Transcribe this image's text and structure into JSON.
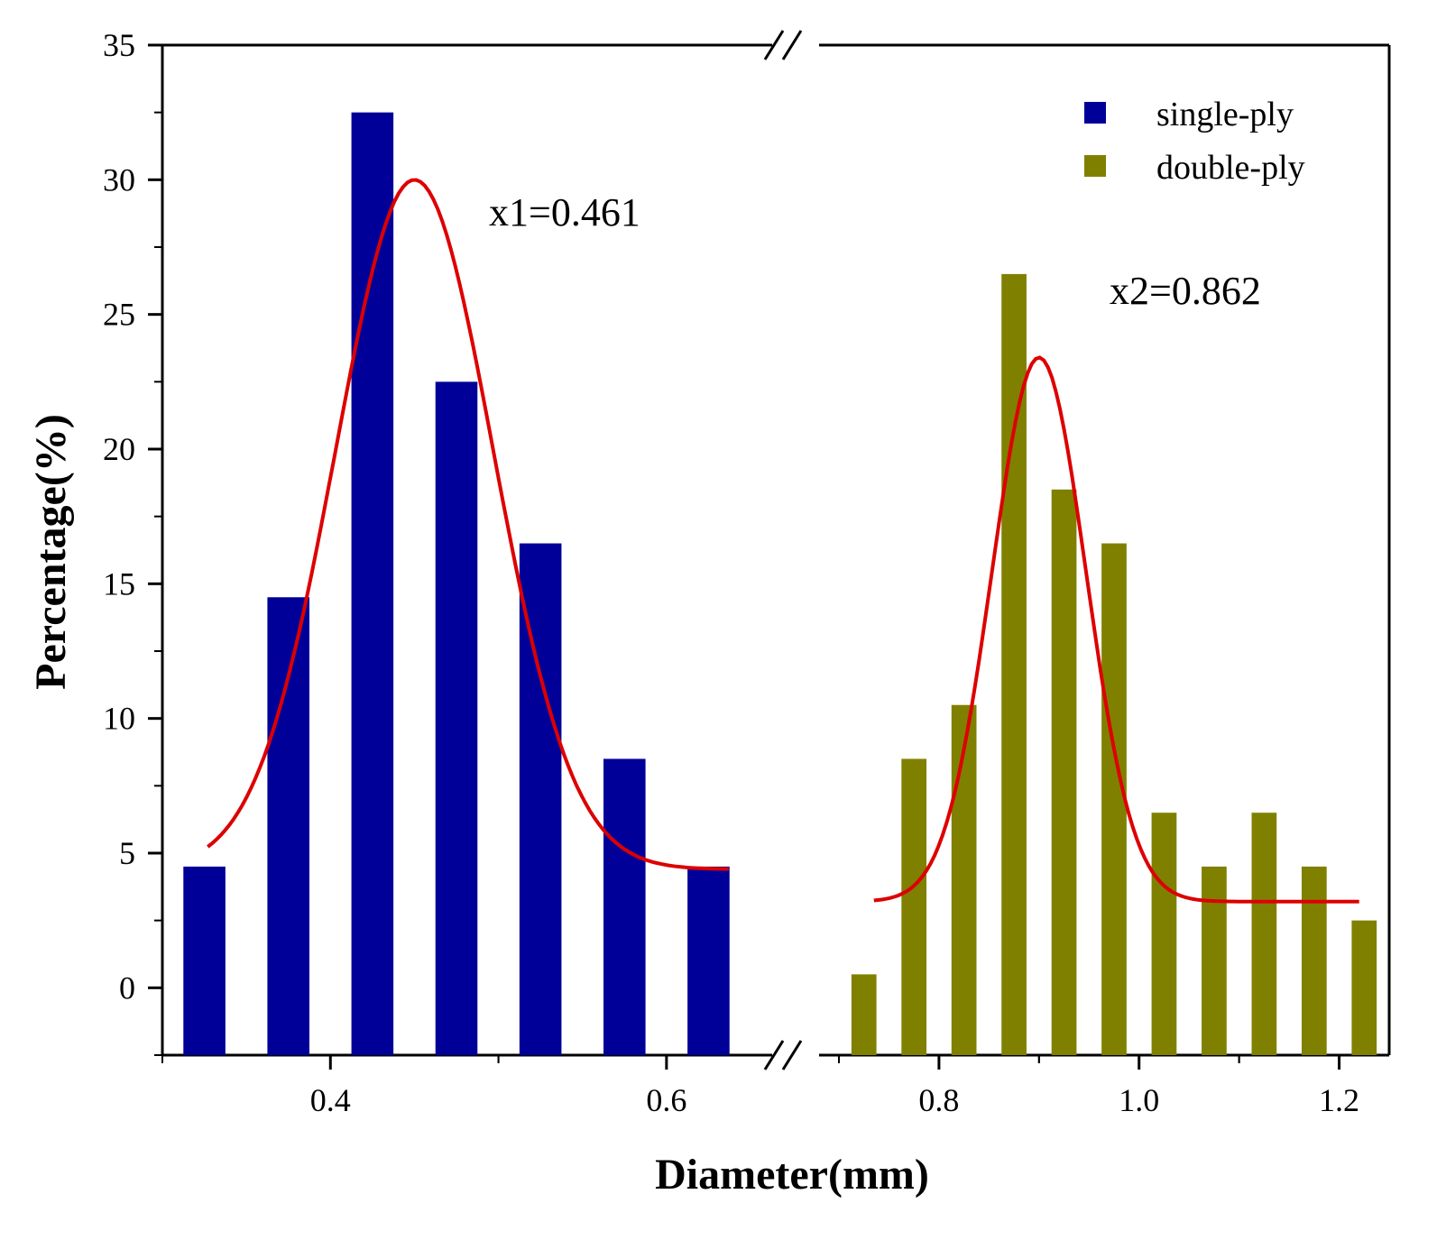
{
  "chart_data": {
    "type": "bar",
    "title": "",
    "xlabel": "Diameter(mm)",
    "ylabel": "Percentage(%)",
    "ylim": [
      -2.5,
      35
    ],
    "yticks": [
      0,
      5,
      10,
      15,
      20,
      25,
      30,
      35
    ],
    "y_tick_labels": [
      "0",
      "5",
      "10",
      "15",
      "20",
      "25",
      "30",
      "35"
    ],
    "x_broken_axis": true,
    "x_segments": [
      {
        "range": [
          0.3,
          0.65
        ],
        "ticks": [
          0.4,
          0.6
        ],
        "tick_labels": [
          "0.4",
          "0.6"
        ]
      },
      {
        "range": [
          0.7,
          1.25
        ],
        "ticks": [
          0.8,
          1.0,
          1.2
        ],
        "tick_labels": [
          "0.8",
          "1.0",
          "1.2"
        ]
      }
    ],
    "series": [
      {
        "name": "single-ply",
        "color": "#000099",
        "x": [
          0.325,
          0.375,
          0.425,
          0.475,
          0.525,
          0.575,
          0.625
        ],
        "values": [
          4.5,
          14.5,
          32.5,
          22.5,
          16.5,
          8.5,
          4.5
        ],
        "fit_mean": 0.461,
        "fit_label": "x1=0.461"
      },
      {
        "name": "double-ply",
        "color": "#808000",
        "x": [
          0.725,
          0.775,
          0.825,
          0.875,
          0.925,
          0.975,
          1.025,
          1.075,
          1.125,
          1.175,
          1.225
        ],
        "values": [
          0.5,
          8.5,
          10.5,
          26.5,
          18.5,
          16.5,
          6.5,
          4.5,
          6.5,
          4.5,
          2.5
        ],
        "fit_mean": 0.862,
        "fit_label": "x2=0.862"
      }
    ],
    "fit_curves": [
      {
        "series": "single-ply",
        "color": "#dd0000",
        "x_range": [
          0.327,
          0.637
        ],
        "baseline": 4.4,
        "peak_x": 0.45,
        "peak_y": 30.0,
        "sigma": 0.047
      },
      {
        "series": "double-ply",
        "color": "#dd0000",
        "x_range": [
          0.735,
          1.22
        ],
        "baseline": 3.2,
        "peak_x": 0.9,
        "peak_y": 23.4,
        "sigma": 0.047
      }
    ],
    "legend": {
      "position": "top-right",
      "entries": [
        "single-ply",
        "double-ply"
      ]
    },
    "grid": false
  }
}
